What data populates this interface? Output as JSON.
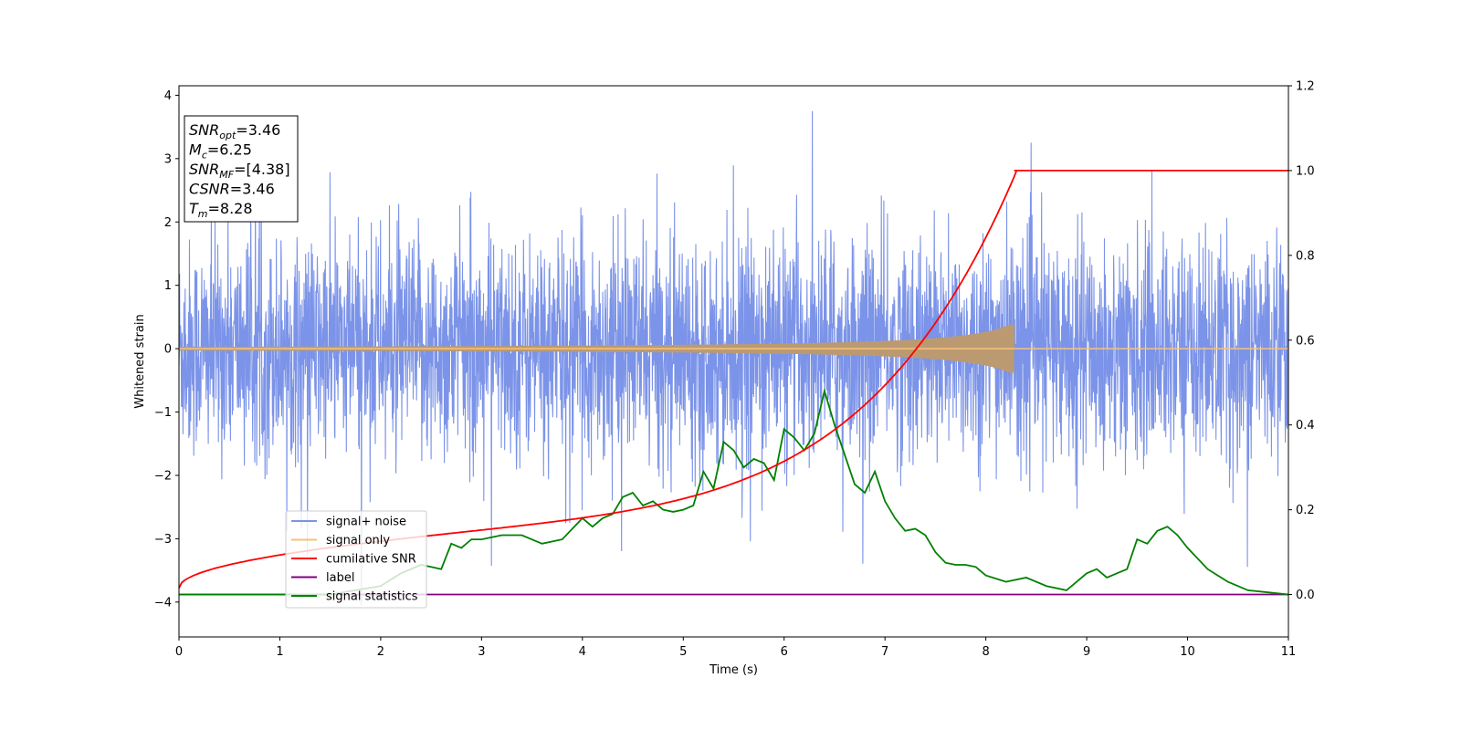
{
  "chart_data": {
    "type": "line",
    "title": "",
    "xlabel": "Time (s)",
    "ylabel": "Whitened strain",
    "xlim": [
      0,
      11
    ],
    "ylim_left": [
      -4.55,
      4.15
    ],
    "ylim_right": [
      -0.1,
      1.2
    ],
    "x_ticks": [
      "0",
      "1",
      "2",
      "3",
      "4",
      "5",
      "6",
      "7",
      "8",
      "9",
      "10",
      "11"
    ],
    "y_left_ticks": [
      "−4",
      "−3",
      "−2",
      "−1",
      "0",
      "1",
      "2",
      "3",
      "4"
    ],
    "y_right_ticks": [
      "0.0",
      "0.2",
      "0.4",
      "0.6",
      "0.8",
      "1.0",
      "1.2"
    ],
    "grid": false,
    "legend_position": "lower-left",
    "stats": [
      {
        "base": "SNR",
        "sub": "opt",
        "value": "=3.46"
      },
      {
        "base": "M",
        "sub": "c",
        "value": "=6.25"
      },
      {
        "base": "SNR",
        "sub": "MF",
        "value": "=[4.38]"
      },
      {
        "base": "CSNR",
        "sub": "",
        "value": "=3.46"
      },
      {
        "base": "T",
        "sub": "m",
        "value": "=8.28"
      }
    ],
    "series": [
      {
        "name": "signal+ noise",
        "color": "#7b93e8",
        "axis": "left",
        "description_values": "white noise, amplitude envelope ±1.5 typical, peaks to ±3.7",
        "sigma": 0.85,
        "x_range": [
          0,
          11
        ]
      },
      {
        "name": "signal only",
        "color": "#f5c27a",
        "axis": "left",
        "chirp_end_time": 8.28,
        "peak_amplitude": 0.38
      },
      {
        "name": "cumilative SNR",
        "color": "#ff0000",
        "axis": "right",
        "x": [
          0,
          0.5,
          1,
          2,
          3,
          4,
          5,
          6,
          6.5,
          7,
          7.5,
          8,
          8.28,
          11
        ],
        "y": [
          0.01,
          0.06,
          0.08,
          0.12,
          0.17,
          0.22,
          0.28,
          0.39,
          0.45,
          0.52,
          0.62,
          0.79,
          1.0,
          1.0
        ]
      },
      {
        "name": "label",
        "color": "#800080",
        "axis": "right",
        "x": [
          0,
          11
        ],
        "y": [
          0,
          0
        ]
      },
      {
        "name": "signal statistics",
        "color": "#008000",
        "axis": "right",
        "x": [
          0,
          1,
          1.5,
          2,
          2.2,
          2.4,
          2.5,
          2.6,
          2.7,
          2.8,
          2.9,
          3.0,
          3.2,
          3.4,
          3.6,
          3.8,
          4.0,
          4.1,
          4.2,
          4.3,
          4.4,
          4.5,
          4.6,
          4.7,
          4.8,
          4.9,
          5.0,
          5.1,
          5.2,
          5.3,
          5.4,
          5.5,
          5.6,
          5.7,
          5.8,
          5.9,
          6.0,
          6.1,
          6.2,
          6.3,
          6.4,
          6.5,
          6.6,
          6.7,
          6.8,
          6.9,
          7.0,
          7.1,
          7.2,
          7.3,
          7.4,
          7.5,
          7.6,
          7.7,
          7.8,
          7.9,
          8.0,
          8.2,
          8.4,
          8.6,
          8.8,
          9.0,
          9.1,
          9.2,
          9.3,
          9.4,
          9.5,
          9.6,
          9.7,
          9.8,
          9.9,
          10.0,
          10.2,
          10.4,
          10.6,
          10.8,
          11.0
        ],
        "y": [
          0.0,
          0.0,
          0.0,
          0.02,
          0.05,
          0.07,
          0.065,
          0.06,
          0.12,
          0.11,
          0.13,
          0.13,
          0.14,
          0.14,
          0.12,
          0.13,
          0.18,
          0.16,
          0.18,
          0.19,
          0.23,
          0.24,
          0.21,
          0.22,
          0.2,
          0.195,
          0.2,
          0.21,
          0.29,
          0.25,
          0.36,
          0.34,
          0.3,
          0.32,
          0.31,
          0.27,
          0.39,
          0.37,
          0.34,
          0.38,
          0.48,
          0.4,
          0.33,
          0.26,
          0.24,
          0.29,
          0.22,
          0.18,
          0.15,
          0.155,
          0.14,
          0.1,
          0.075,
          0.07,
          0.07,
          0.065,
          0.045,
          0.03,
          0.04,
          0.02,
          0.01,
          0.05,
          0.06,
          0.04,
          0.05,
          0.06,
          0.13,
          0.12,
          0.15,
          0.16,
          0.14,
          0.11,
          0.06,
          0.03,
          0.01,
          0.005,
          0.0
        ]
      }
    ]
  }
}
